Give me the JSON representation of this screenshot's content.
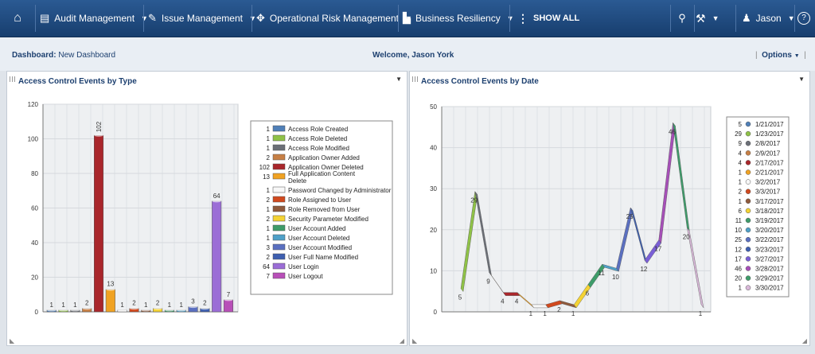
{
  "topbar": {
    "nav": [
      {
        "label": "Audit Management",
        "icon": "document-icon"
      },
      {
        "label": "Issue Management",
        "icon": "wrench-icon"
      },
      {
        "label": "Operational Risk Management",
        "icon": "compass-icon"
      },
      {
        "label": "Business Resiliency",
        "icon": "factory-icon"
      }
    ],
    "show_all": "SHOW ALL",
    "user": "Jason"
  },
  "dashboard": {
    "label": "Dashboard:",
    "name": "New Dashboard",
    "welcome": "Welcome, Jason York",
    "options": "Options"
  },
  "panels": {
    "by_type_title": "Access Control Events by Type",
    "by_date_title": "Access Control Events by Date"
  },
  "chart_data": [
    {
      "type": "bar",
      "title": "Access Control Events by Type",
      "ylim": [
        0,
        120
      ],
      "yticks": [
        0,
        20,
        40,
        60,
        80,
        100,
        120
      ],
      "grid": true,
      "legend_position": "right",
      "categories": [
        "Access Role Created",
        "Access Role Deleted",
        "Access Role Modified",
        "Application Owner Added",
        "Application Owner Deleted",
        "Full Application Content Delete",
        "Password Changed by Administrator",
        "Role Assigned to User",
        "Role Removed from User",
        "Security Parameter Modified",
        "User Account Added",
        "User Account Deleted",
        "User Account Modified",
        "User Full Name Modified",
        "User Login",
        "User Logout"
      ],
      "values": [
        1,
        1,
        1,
        2,
        102,
        13,
        1,
        2,
        1,
        2,
        1,
        1,
        3,
        2,
        64,
        7
      ],
      "colors": [
        "#4f7fb8",
        "#8fc247",
        "#6b6f77",
        "#c77f45",
        "#a9262b",
        "#f0a222",
        "#f7f7f7",
        "#d1491e",
        "#8f5a3c",
        "#f4d334",
        "#3e9c6a",
        "#4fa0c8",
        "#5a6fc0",
        "#3e5fb0",
        "#9b6dd6",
        "#b84fb8"
      ]
    },
    {
      "type": "line",
      "title": "Access Control Events by Date",
      "ylim": [
        0,
        50
      ],
      "yticks": [
        0,
        10,
        20,
        30,
        40,
        50
      ],
      "grid": true,
      "legend_position": "right",
      "x": [
        "1/21/2017",
        "1/23/2017",
        "2/8/2017",
        "2/9/2017",
        "2/17/2017",
        "2/21/2017",
        "3/2/2017",
        "3/3/2017",
        "3/17/2017",
        "3/18/2017",
        "3/19/2017",
        "3/20/2017",
        "3/22/2017",
        "3/23/2017",
        "3/27/2017",
        "3/28/2017",
        "3/29/2017",
        "3/30/2017"
      ],
      "values": [
        5,
        29,
        9,
        4,
        4,
        1,
        1,
        2,
        1,
        6,
        11,
        10,
        25,
        12,
        17,
        46,
        20,
        1
      ],
      "colors": [
        "#4f7fb8",
        "#8fc247",
        "#6b6f77",
        "#c77f45",
        "#a9262b",
        "#f0a222",
        "#f7f7f7",
        "#d1491e",
        "#8f5a3c",
        "#f4d334",
        "#3e9c6a",
        "#4fa0c8",
        "#5a6fc0",
        "#3e5fb0",
        "#7a5fd6",
        "#a64fb8",
        "#3e9c6a",
        "#d9b8d9"
      ]
    }
  ]
}
